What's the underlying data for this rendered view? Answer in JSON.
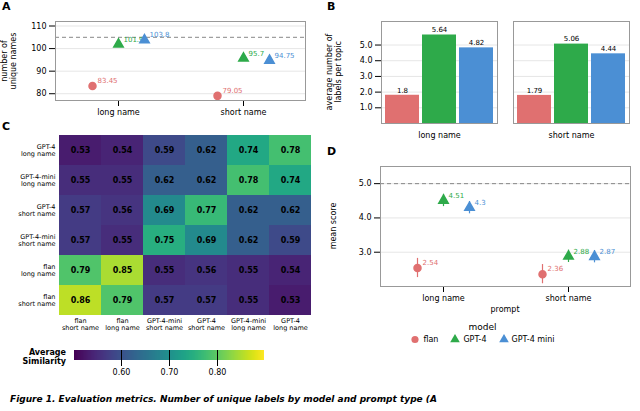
{
  "caption": "Figure 1. Evaluation metrics. Number of unique labels by model and prompt type (A",
  "chart_data": [
    {
      "type": "scatter",
      "title": "A",
      "ylabel": "number of\nunique names",
      "categories": [
        "long name",
        "short name"
      ],
      "series": [
        {
          "name": "flan",
          "color": "#e07070",
          "marker": "circle",
          "values": [
            83.45,
            79.05
          ],
          "errors": [
            1.2,
            1.2
          ]
        },
        {
          "name": "GPT-4",
          "color": "#2eaa4a",
          "marker": "triangle",
          "values": [
            101.9,
            95.7
          ],
          "errors": [
            1.2,
            1.2
          ]
        },
        {
          "name": "GPT-4 mini",
          "color": "#4b8fd4",
          "marker": "triangle",
          "values": [
            103.8,
            94.75
          ],
          "errors": [
            1.2,
            1.2
          ]
        }
      ],
      "reference_y": 105,
      "ylim": [
        77,
        112
      ],
      "yticks": [
        80,
        90,
        100,
        110
      ],
      "grid": true,
      "data_labels": true
    },
    {
      "type": "bar",
      "title": "B",
      "ylabel": "average number of\nlabels per topic",
      "categories": [
        "long name",
        "short name"
      ],
      "series": [
        {
          "name": "flan",
          "color": "#e07070",
          "values": [
            1.8,
            1.79
          ]
        },
        {
          "name": "GPT-4",
          "color": "#2eaa4a",
          "values": [
            5.64,
            5.06
          ]
        },
        {
          "name": "GPT-4 mini",
          "color": "#4b8fd4",
          "values": [
            4.82,
            4.44
          ]
        }
      ],
      "ylim": [
        0,
        6.5
      ],
      "yticks": [
        1,
        2,
        3,
        4,
        5
      ],
      "grid": true,
      "data_labels": true
    },
    {
      "type": "heatmap",
      "title": "C",
      "columns": [
        "flan\nshort name",
        "flan\nlong name",
        "GPT-4-mini\nshort name",
        "GPT-4\nshort name",
        "GPT-4-mini\nlong name",
        "GPT-4\nlong name"
      ],
      "rows": [
        "GPT-4\nlong name",
        "GPT-4-mini\nlong name",
        "GPT-4\nshort name",
        "GPT-4-mini\nshort name",
        "flan\nlong name",
        "flan\nshort name"
      ],
      "values": [
        [
          0.53,
          0.54,
          0.59,
          0.62,
          0.74,
          0.78
        ],
        [
          0.55,
          0.55,
          0.62,
          0.62,
          0.78,
          0.74
        ],
        [
          0.57,
          0.56,
          0.69,
          0.77,
          0.62,
          0.62
        ],
        [
          0.57,
          0.55,
          0.75,
          0.69,
          0.62,
          0.59
        ],
        [
          0.79,
          0.85,
          0.55,
          0.56,
          0.55,
          0.54
        ],
        [
          0.86,
          0.79,
          0.57,
          0.57,
          0.55,
          0.53
        ]
      ],
      "color": "viridis",
      "colorbar_range": [
        0.5,
        0.9
      ],
      "colorbar_ticks": [
        0.6,
        0.7,
        0.8
      ],
      "colorbar_label": "Average\nSimilarity",
      "data_labels": true
    },
    {
      "type": "scatter",
      "title": "D",
      "ylabel": "mean score",
      "xlabel": "prompt",
      "categories": [
        "long name",
        "short name"
      ],
      "series": [
        {
          "name": "flan",
          "color": "#e07070",
          "marker": "circle",
          "values": [
            2.54,
            2.36
          ],
          "errors": [
            0.28,
            0.28
          ]
        },
        {
          "name": "GPT-4",
          "color": "#2eaa4a",
          "marker": "triangle",
          "values": [
            4.51,
            2.88
          ],
          "errors": [
            0.18,
            0.18
          ]
        },
        {
          "name": "GPT-4 mini",
          "color": "#4b8fd4",
          "marker": "triangle",
          "values": [
            4.3,
            2.87
          ],
          "errors": [
            0.18,
            0.18
          ]
        }
      ],
      "reference_y": 5,
      "ylim": [
        2.0,
        5.5
      ],
      "yticks": [
        3,
        4,
        5
      ],
      "grid": true,
      "data_labels": true,
      "legend": "bottom",
      "legend_title": "model"
    }
  ]
}
